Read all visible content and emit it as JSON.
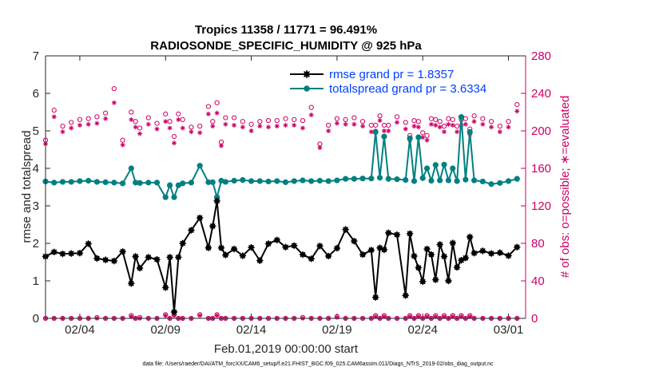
{
  "chart_data": {
    "type": "line",
    "title": [
      "Tropics 11358 / 11771 = 96.491%",
      "RADIOSONDE_SPECIFIC_HUMIDITY @ 925 hPa"
    ],
    "ylabel": "rmse and totalspread",
    "y2label": "# of obs: o=possible; ∗=evaluated",
    "xlabel": "Feb.01,2019 00:00:00 start",
    "footnote": "data file: /Users/raeder/DAI/ATM_forcXX/CAM6_setup/f.e21.FHIST_BGC.f09_025.CAM6assim.011/Diags_NTrS_2019-02/obs_diag_output.nc",
    "xlim": [
      1.0,
      29.0
    ],
    "ylim": [
      0,
      7
    ],
    "y2lim": [
      0,
      280
    ],
    "xticks": [
      3.0,
      8.0,
      13.0,
      18.0,
      23.0,
      28.0
    ],
    "xticklabels": [
      "02/04",
      "02/09",
      "02/14",
      "02/19",
      "02/24",
      "03/01"
    ],
    "yticks": [
      0,
      1,
      2,
      3,
      4,
      5,
      6,
      7
    ],
    "y2ticks": [
      0,
      40,
      80,
      120,
      160,
      200,
      240,
      280
    ],
    "colors": {
      "rmse": "#000000",
      "spread": "#008080",
      "obs": "#cc0066",
      "legend_text": "#0040ff",
      "axis": "#262626",
      "right_axis": "#cc0066"
    },
    "series": [
      {
        "name": "rmse",
        "legend": "rmse grand pr = 1.8357",
        "x": [
          1.0,
          1.5,
          2.0,
          2.5,
          3.0,
          3.5,
          4.0,
          4.5,
          5.0,
          5.5,
          6.0,
          6.25,
          6.5,
          7.0,
          7.5,
          8.0,
          8.25,
          8.5,
          8.75,
          9.0,
          9.5,
          10.0,
          10.5,
          10.75,
          11.0,
          11.25,
          11.5,
          12.0,
          12.5,
          13.0,
          13.5,
          14.0,
          14.5,
          15.0,
          15.5,
          16.0,
          16.5,
          17.0,
          17.5,
          18.0,
          18.5,
          19.0,
          19.5,
          20.0,
          20.25,
          20.5,
          20.75,
          21.0,
          21.5,
          22.0,
          22.25,
          22.5,
          22.75,
          23.0,
          23.25,
          23.5,
          23.75,
          24.0,
          24.25,
          24.5,
          24.75,
          25.0,
          25.25,
          25.5,
          25.75,
          26.0,
          26.5,
          27.0,
          27.5,
          28.0,
          28.5
        ],
        "values": [
          1.65,
          1.77,
          1.72,
          1.73,
          1.74,
          1.99,
          1.6,
          1.56,
          1.53,
          1.78,
          0.93,
          1.65,
          1.34,
          1.63,
          1.57,
          0.82,
          1.63,
          0.17,
          1.63,
          2.0,
          2.35,
          2.68,
          1.88,
          2.46,
          3.13,
          1.88,
          1.69,
          1.85,
          1.67,
          1.89,
          1.54,
          1.99,
          2.09,
          1.9,
          1.94,
          1.7,
          1.59,
          1.93,
          1.66,
          1.87,
          2.37,
          2.06,
          1.7,
          1.82,
          0.56,
          1.88,
          1.83,
          2.28,
          2.23,
          0.61,
          2.26,
          1.66,
          1.35,
          0.98,
          1.85,
          1.7,
          1.03,
          1.97,
          1.65,
          1.0,
          2.01,
          1.36,
          1.55,
          1.61,
          2.17,
          1.74,
          1.8,
          1.73,
          1.75,
          1.67,
          1.9
        ]
      },
      {
        "name": "totalspread",
        "legend": "totalspread grand pr = 3.6334",
        "x": [
          1.0,
          1.5,
          2.0,
          2.5,
          3.0,
          3.5,
          4.0,
          4.5,
          5.0,
          5.5,
          6.0,
          6.25,
          6.5,
          7.0,
          7.5,
          8.0,
          8.25,
          8.5,
          8.75,
          9.0,
          9.5,
          10.0,
          10.5,
          10.75,
          11.0,
          11.25,
          11.5,
          12.0,
          12.5,
          13.0,
          13.5,
          14.0,
          14.5,
          15.0,
          15.5,
          16.0,
          16.5,
          17.0,
          17.5,
          18.0,
          18.5,
          19.0,
          19.5,
          20.0,
          20.25,
          20.5,
          20.75,
          21.0,
          21.5,
          22.0,
          22.25,
          22.5,
          22.75,
          23.0,
          23.25,
          23.5,
          23.75,
          24.0,
          24.25,
          24.5,
          24.75,
          25.0,
          25.25,
          25.5,
          25.75,
          26.0,
          26.5,
          27.0,
          27.5,
          28.0,
          28.5
        ],
        "values": [
          3.65,
          3.62,
          3.64,
          3.64,
          3.66,
          3.67,
          3.64,
          3.63,
          3.62,
          3.6,
          4.0,
          3.62,
          3.61,
          3.62,
          3.62,
          3.23,
          3.55,
          3.23,
          3.55,
          3.6,
          3.62,
          4.07,
          3.63,
          3.63,
          3.23,
          3.67,
          3.64,
          3.67,
          3.69,
          3.66,
          3.66,
          3.65,
          3.66,
          3.63,
          3.66,
          3.68,
          3.66,
          3.67,
          3.66,
          3.68,
          3.72,
          3.72,
          3.73,
          3.73,
          4.97,
          3.75,
          4.85,
          3.72,
          3.71,
          3.69,
          4.8,
          3.66,
          4.83,
          3.74,
          4.0,
          3.67,
          4.09,
          3.68,
          4.1,
          3.68,
          4.0,
          3.66,
          5.37,
          3.7,
          4.97,
          3.68,
          3.65,
          3.58,
          3.61,
          3.66,
          3.72
        ]
      },
      {
        "name": "obs possible",
        "marker": "o",
        "x": [
          1.0,
          1.5,
          2.0,
          2.5,
          3.0,
          3.5,
          4.0,
          4.5,
          5.0,
          5.5,
          6.0,
          6.25,
          6.5,
          7.0,
          7.5,
          8.0,
          8.25,
          8.5,
          8.75,
          9.0,
          9.5,
          10.0,
          10.5,
          10.75,
          11.0,
          11.25,
          11.5,
          12.0,
          12.5,
          13.0,
          13.5,
          14.0,
          14.5,
          15.0,
          15.5,
          16.0,
          16.5,
          17.0,
          17.5,
          18.0,
          18.5,
          19.0,
          19.5,
          20.0,
          20.25,
          20.5,
          20.75,
          21.0,
          21.5,
          22.0,
          22.25,
          22.5,
          22.75,
          23.0,
          23.25,
          23.5,
          23.75,
          24.0,
          24.25,
          24.5,
          24.75,
          25.0,
          25.25,
          25.5,
          25.75,
          26.0,
          26.5,
          27.0,
          27.5,
          28.0,
          28.5
        ],
        "values": [
          190,
          222,
          205,
          209,
          212,
          213,
          215,
          219,
          245,
          190,
          220,
          210,
          203,
          214,
          208,
          218,
          210,
          194,
          218,
          212,
          204,
          205,
          226,
          210,
          230,
          188,
          214,
          214,
          210,
          207,
          210,
          211,
          211,
          213,
          212,
          211,
          225,
          186,
          206,
          213,
          212,
          214,
          210,
          206,
          206,
          216,
          206,
          206,
          215,
          209,
          195,
          211,
          210,
          198,
          195,
          213,
          212,
          210,
          205,
          213,
          212,
          205,
          212,
          213,
          202,
          216,
          213,
          210,
          205,
          210,
          228
        ]
      },
      {
        "name": "obs evaluated",
        "marker": "*",
        "x": [
          1.0,
          1.5,
          2.0,
          2.5,
          3.0,
          3.5,
          4.0,
          4.5,
          5.0,
          5.5,
          6.0,
          6.25,
          6.5,
          7.0,
          7.5,
          8.0,
          8.25,
          8.5,
          8.75,
          9.0,
          9.5,
          10.0,
          10.5,
          10.75,
          11.0,
          11.25,
          11.5,
          12.0,
          12.5,
          13.0,
          13.5,
          14.0,
          14.5,
          15.0,
          15.5,
          16.0,
          16.5,
          17.0,
          17.5,
          18.0,
          18.5,
          19.0,
          19.5,
          20.0,
          20.25,
          20.5,
          20.75,
          21.0,
          21.5,
          22.0,
          22.25,
          22.5,
          22.75,
          23.0,
          23.25,
          23.5,
          23.75,
          24.0,
          24.25,
          24.5,
          24.75,
          25.0,
          25.25,
          25.5,
          25.75,
          26.0,
          26.5,
          27.0,
          27.5,
          28.0,
          28.5
        ],
        "values": [
          186,
          215,
          199,
          203,
          206,
          207,
          208,
          213,
          230,
          185,
          212,
          204,
          197,
          207,
          202,
          210,
          203,
          187,
          212,
          203,
          199,
          198,
          218,
          205,
          219,
          184,
          207,
          206,
          204,
          200,
          205,
          204,
          205,
          206,
          206,
          203,
          217,
          182,
          200,
          208,
          207,
          207,
          205,
          199,
          200,
          211,
          200,
          200,
          209,
          202,
          190,
          205,
          204,
          193,
          190,
          207,
          206,
          204,
          199,
          207,
          206,
          199,
          206,
          207,
          196,
          210,
          207,
          204,
          199,
          204,
          221
        ]
      },
      {
        "name": "obs possible (bottom)",
        "marker": "o",
        "x": [
          1.0,
          1.5,
          2.0,
          2.5,
          3.0,
          3.5,
          4.0,
          4.5,
          5.0,
          5.5,
          6.0,
          6.25,
          6.5,
          7.0,
          7.5,
          8.0,
          8.25,
          8.5,
          8.75,
          9.0,
          9.5,
          10.0,
          10.5,
          10.75,
          11.0,
          11.25,
          11.5,
          12.0,
          12.5,
          13.0,
          13.5,
          14.0,
          14.5,
          15.0,
          15.5,
          16.0,
          16.5,
          17.0,
          17.5,
          18.0,
          18.5,
          19.0,
          19.5,
          20.0,
          20.25,
          20.5,
          20.75,
          21.0,
          21.5,
          22.0,
          22.25,
          22.5,
          22.75,
          23.0,
          23.25,
          23.5,
          23.75,
          24.0,
          24.25,
          24.5,
          24.75,
          25.0,
          25.25,
          25.5,
          25.75,
          26.0,
          26.5,
          27.0,
          27.5,
          28.0,
          28.5
        ],
        "values": [
          0,
          0,
          0,
          0,
          0,
          0,
          1,
          0,
          0,
          0,
          3,
          0,
          1,
          0,
          0,
          4,
          0,
          4,
          0,
          0,
          0,
          4,
          0,
          0,
          4,
          0,
          0,
          0,
          0,
          0,
          0,
          0,
          0,
          0,
          0,
          1,
          0,
          0,
          0,
          2,
          0,
          0,
          0,
          0,
          3,
          0,
          3,
          0,
          0,
          0,
          3,
          0,
          3,
          0,
          3,
          0,
          3,
          0,
          3,
          0,
          3,
          0,
          3,
          0,
          3,
          0,
          0,
          0,
          0,
          0,
          0
        ]
      },
      {
        "name": "obs evaluated (bottom)",
        "marker": "*",
        "x": [
          1.0,
          1.5,
          2.0,
          2.5,
          3.0,
          3.5,
          4.0,
          4.5,
          5.0,
          5.5,
          6.0,
          6.25,
          6.5,
          7.0,
          7.5,
          8.0,
          8.25,
          8.5,
          8.75,
          9.0,
          9.5,
          10.0,
          10.5,
          10.75,
          11.0,
          11.25,
          11.5,
          12.0,
          12.5,
          13.0,
          13.5,
          14.0,
          14.5,
          15.0,
          15.5,
          16.0,
          16.5,
          17.0,
          17.5,
          18.0,
          18.5,
          19.0,
          19.5,
          20.0,
          20.25,
          20.5,
          20.75,
          21.0,
          21.5,
          22.0,
          22.25,
          22.5,
          22.75,
          23.0,
          23.25,
          23.5,
          23.75,
          24.0,
          24.25,
          24.5,
          24.75,
          25.0,
          25.25,
          25.5,
          25.75,
          26.0,
          26.5,
          27.0,
          27.5,
          28.0,
          28.5
        ],
        "values": [
          0,
          0,
          0,
          0,
          0,
          0,
          0,
          0,
          0,
          0,
          2,
          0,
          0,
          0,
          0,
          3,
          0,
          3,
          0,
          0,
          0,
          3,
          0,
          0,
          3,
          0,
          0,
          0,
          0,
          0,
          0,
          0,
          0,
          0,
          0,
          0,
          0,
          0,
          0,
          1,
          0,
          0,
          0,
          0,
          2,
          0,
          2,
          0,
          0,
          0,
          2,
          0,
          2,
          0,
          2,
          0,
          2,
          0,
          2,
          0,
          2,
          0,
          2,
          0,
          2,
          0,
          0,
          0,
          0,
          0,
          0
        ]
      }
    ]
  }
}
